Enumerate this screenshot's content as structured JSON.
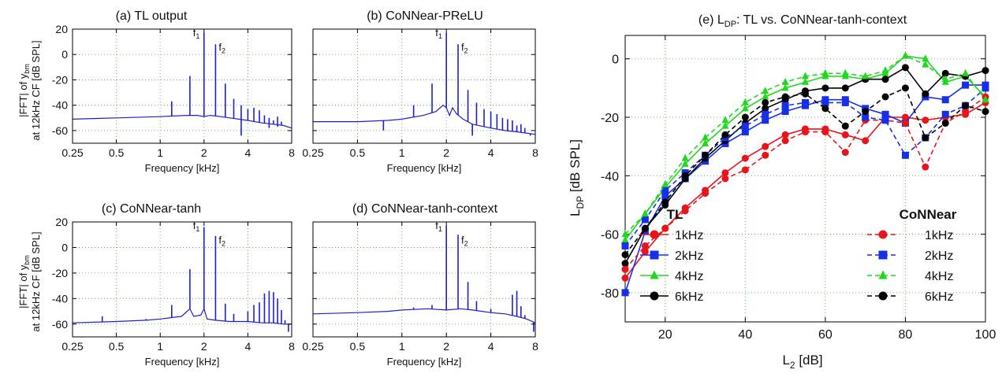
{
  "panels": {
    "a": {
      "title": "(a) TL output"
    },
    "b": {
      "title": "(b) CoNNear-PReLU"
    },
    "c": {
      "title": "(c) CoNNear-tanh"
    },
    "d": {
      "title": "(d) CoNNear-tanh-context"
    },
    "e": {
      "title_prefix": "(e) L",
      "title_sub": "DP",
      "title_suffix": ": TL vs. CoNNear-tanh-context"
    }
  },
  "spectrum_axes": {
    "xlabel": "Frequency [kHz]",
    "ylabel_line1_prefix": "|FFT| of y",
    "ylabel_line1_sub": "bm",
    "ylabel_line2": "at 12kHz CF [dB SPL]",
    "xticks": [
      "0.25",
      "0.5",
      "1",
      "2",
      "4",
      "8"
    ],
    "yticks": [
      "20",
      "0",
      "-20",
      "-40",
      "-60"
    ],
    "peak_f1": "f",
    "peak_f1_sub": "1",
    "peak_f2": "f",
    "peak_f2_sub": "2"
  },
  "ldp_axes": {
    "xlabel_prefix": "L",
    "xlabel_sub": "2",
    "xlabel_suffix": " [dB]",
    "ylabel_prefix": "L",
    "ylabel_sub": "DP",
    "ylabel_suffix": " [dB SPL]",
    "xticks": [
      "20",
      "40",
      "60",
      "80",
      "100"
    ],
    "yticks": [
      "0",
      "-20",
      "-40",
      "-60",
      "-80"
    ]
  },
  "legend": {
    "col1_header": "TL",
    "col2_header": "CoNNear",
    "entries": [
      "1kHz",
      "2kHz",
      "4kHz",
      "6kHz"
    ]
  },
  "colors": {
    "spectrum": "#1f1fd0",
    "red": "#e8141b",
    "blue": "#1530e6",
    "green": "#1fd81f",
    "black": "#000000"
  },
  "chart_data": [
    {
      "type": "line",
      "title": "(a) TL output",
      "xscale": "log2",
      "xlim": [
        0.25,
        8
      ],
      "ylim": [
        -70,
        20
      ],
      "xlabel": "Frequency [kHz]",
      "ylabel": "|FFT| of ybm at 12kHz CF [dB SPL]",
      "floor": [
        [
          0.25,
          -51
        ],
        [
          0.5,
          -50
        ],
        [
          1,
          -49
        ],
        [
          1.5,
          -48
        ],
        [
          1.8,
          -48
        ],
        [
          2,
          -49
        ],
        [
          2.2,
          -48
        ],
        [
          2.6,
          -49
        ],
        [
          3,
          -50
        ],
        [
          4,
          -52
        ],
        [
          5,
          -54
        ],
        [
          6,
          -55
        ],
        [
          7,
          -56
        ],
        [
          8,
          -58
        ]
      ],
      "peaks": [
        [
          1.2,
          -37
        ],
        [
          1.6,
          -17
        ],
        [
          2.0,
          17
        ],
        [
          2.4,
          8
        ],
        [
          2.8,
          -23
        ],
        [
          3.2,
          -35
        ],
        [
          3.6,
          -40
        ],
        [
          4.0,
          -43
        ],
        [
          4.4,
          -42
        ],
        [
          4.8,
          -44
        ],
        [
          5.2,
          -48
        ],
        [
          5.6,
          -50
        ],
        [
          6.0,
          -52
        ],
        [
          6.4,
          -49
        ],
        [
          6.8,
          -53
        ]
      ],
      "dips": [
        [
          3.6,
          -64
        ],
        [
          5.6,
          -58
        ],
        [
          6.4,
          -57
        ]
      ],
      "annotations": [
        {
          "text": "f1",
          "x": 2.0
        },
        {
          "text": "f2",
          "x": 2.4
        }
      ]
    },
    {
      "type": "line",
      "title": "(b) CoNNear-PReLU",
      "xscale": "log2",
      "xlim": [
        0.25,
        8
      ],
      "ylim": [
        -70,
        20
      ],
      "xlabel": "Frequency [kHz]",
      "floor": [
        [
          0.25,
          -53
        ],
        [
          0.5,
          -53
        ],
        [
          0.8,
          -52
        ],
        [
          1,
          -51
        ],
        [
          1.4,
          -48
        ],
        [
          1.7,
          -45
        ],
        [
          1.9,
          -40
        ],
        [
          2.0,
          -42
        ],
        [
          2.1,
          -48
        ],
        [
          2.2,
          -42
        ],
        [
          2.35,
          -47
        ],
        [
          2.6,
          -51
        ],
        [
          3,
          -55
        ],
        [
          4,
          -58
        ],
        [
          5,
          -60
        ],
        [
          6,
          -61
        ],
        [
          8,
          -63
        ]
      ],
      "peaks": [
        [
          1.2,
          -40
        ],
        [
          1.6,
          -23
        ],
        [
          2.0,
          17
        ],
        [
          2.4,
          8
        ],
        [
          2.8,
          -28
        ],
        [
          3.2,
          -38
        ],
        [
          3.6,
          -43
        ],
        [
          4.0,
          -45
        ],
        [
          4.4,
          -47
        ],
        [
          4.8,
          -50
        ],
        [
          5.2,
          -51
        ],
        [
          5.6,
          -52
        ],
        [
          6.0,
          -56
        ],
        [
          6.4,
          -55
        ],
        [
          6.8,
          -58
        ]
      ],
      "dips": [
        [
          0.75,
          -60
        ],
        [
          3.0,
          -64
        ],
        [
          7.4,
          -64
        ]
      ],
      "annotations": [
        {
          "text": "f1",
          "x": 2.0
        },
        {
          "text": "f2",
          "x": 2.4
        }
      ]
    },
    {
      "type": "line",
      "title": "(c) CoNNear-tanh",
      "xscale": "log2",
      "xlim": [
        0.25,
        8
      ],
      "ylim": [
        -70,
        20
      ],
      "xlabel": "Frequency [kHz]",
      "ylabel": "|FFT| of ybm at 12kHz CF [dB SPL]",
      "floor": [
        [
          0.25,
          -59
        ],
        [
          0.5,
          -58
        ],
        [
          0.8,
          -57
        ],
        [
          1,
          -56
        ],
        [
          1.4,
          -54
        ],
        [
          1.6,
          -48
        ],
        [
          1.7,
          -54
        ],
        [
          1.9,
          -53
        ],
        [
          2.0,
          -48
        ],
        [
          2.1,
          -56
        ],
        [
          2.4,
          -57
        ],
        [
          3,
          -58
        ],
        [
          4,
          -58
        ],
        [
          5,
          -59
        ],
        [
          6,
          -59
        ],
        [
          7,
          -60
        ],
        [
          8,
          -60
        ]
      ],
      "peaks": [
        [
          0.4,
          -54
        ],
        [
          0.8,
          -56
        ],
        [
          1.2,
          -45
        ],
        [
          1.6,
          -17
        ],
        [
          2.0,
          16
        ],
        [
          2.4,
          9
        ],
        [
          2.8,
          -44
        ],
        [
          3.2,
          -52
        ],
        [
          4.0,
          -50
        ],
        [
          4.4,
          -45
        ],
        [
          4.8,
          -43
        ],
        [
          5.2,
          -36
        ],
        [
          5.6,
          -34
        ],
        [
          6.0,
          -35
        ],
        [
          6.4,
          -40
        ],
        [
          6.8,
          -49
        ],
        [
          7.2,
          -57
        ]
      ],
      "dips": [
        [
          7.6,
          -66
        ]
      ],
      "annotations": [
        {
          "text": "f1",
          "x": 2.0
        },
        {
          "text": "f2",
          "x": 2.4
        }
      ]
    },
    {
      "type": "line",
      "title": "(d) CoNNear-tanh-context",
      "xscale": "log2",
      "xlim": [
        0.25,
        8
      ],
      "ylim": [
        -70,
        20
      ],
      "xlabel": "Frequency [kHz]",
      "floor": [
        [
          0.25,
          -52
        ],
        [
          0.5,
          -51
        ],
        [
          0.8,
          -50
        ],
        [
          1,
          -49
        ],
        [
          1.5,
          -48
        ],
        [
          2,
          -49
        ],
        [
          2.5,
          -48
        ],
        [
          3,
          -49
        ],
        [
          3.5,
          -50
        ],
        [
          4,
          -51
        ],
        [
          5,
          -52
        ],
        [
          6,
          -54
        ],
        [
          7,
          -56
        ],
        [
          8,
          -59
        ]
      ],
      "peaks": [
        [
          1.2,
          -47
        ],
        [
          1.6,
          -45
        ],
        [
          2.0,
          17
        ],
        [
          2.4,
          10
        ],
        [
          2.8,
          -27
        ],
        [
          3.2,
          -42
        ],
        [
          4.0,
          -48
        ],
        [
          5.6,
          -37
        ],
        [
          6.0,
          -34
        ],
        [
          6.4,
          -46
        ],
        [
          6.8,
          -53
        ]
      ],
      "dips": [
        [
          7.8,
          -66
        ]
      ],
      "annotations": [
        {
          "text": "f1",
          "x": 2.0
        },
        {
          "text": "f2",
          "x": 2.4
        }
      ]
    },
    {
      "type": "line",
      "title": "(e) LDP: TL vs. CoNNear-tanh-context",
      "xlim": [
        10,
        100
      ],
      "ylim": [
        -90,
        8
      ],
      "xlabel": "L2 [dB]",
      "ylabel": "LDP [dB SPL]",
      "x": [
        10,
        15,
        20,
        25,
        30,
        35,
        40,
        45,
        50,
        55,
        60,
        65,
        70,
        75,
        80,
        85,
        90,
        95,
        100
      ],
      "series": [
        {
          "name": "1kHz",
          "group": "TL",
          "color": "red",
          "marker": "circle",
          "dashed": false,
          "values": [
            -75,
            -66,
            -58,
            -51,
            -45,
            -39,
            -34,
            -30,
            -26,
            -24,
            -24,
            -26,
            -28,
            -20,
            -20,
            -21,
            -20,
            -19,
            -15
          ]
        },
        {
          "name": "2kHz",
          "group": "TL",
          "color": "blue",
          "marker": "square",
          "dashed": false,
          "values": [
            -80,
            -59,
            -47,
            -41,
            -35,
            -29,
            -25,
            -21,
            -18,
            -16,
            -14,
            -14,
            -17,
            -19,
            -22,
            -13,
            -14,
            -9,
            -9
          ]
        },
        {
          "name": "4kHz",
          "group": "TL",
          "color": "green",
          "marker": "triangle",
          "dashed": false,
          "values": [
            -62,
            -53,
            -44,
            -36,
            -29,
            -23,
            -17,
            -13,
            -10,
            -8,
            -6,
            -6,
            -7,
            -5,
            1,
            0,
            -8,
            -6,
            -13
          ]
        },
        {
          "name": "6kHz",
          "group": "TL",
          "color": "black",
          "marker": "circle",
          "dashed": false,
          "values": [
            -70,
            -58,
            -50,
            -41,
            -34,
            -28,
            -22,
            -17,
            -14,
            -11,
            -10,
            -10,
            -7,
            -7,
            -3,
            -12,
            -5,
            -6,
            -4
          ]
        },
        {
          "name": "1kHz",
          "group": "CoNNear",
          "color": "red",
          "marker": "circle",
          "dashed": true,
          "values": [
            -72,
            -64,
            -58,
            -52,
            -46,
            -41,
            -38,
            -33,
            -28,
            -25,
            -25,
            -32,
            -21,
            -21,
            -22,
            -37,
            -22,
            -18,
            -13
          ]
        },
        {
          "name": "2kHz",
          "group": "CoNNear",
          "color": "blue",
          "marker": "square",
          "dashed": true,
          "values": [
            -64,
            -55,
            -45,
            -39,
            -33,
            -27,
            -23,
            -19,
            -16,
            -15,
            -15,
            -15,
            -20,
            -21,
            -33,
            -27,
            -19,
            -16,
            -10
          ]
        },
        {
          "name": "4kHz",
          "group": "CoNNear",
          "color": "green",
          "marker": "triangle",
          "dashed": true,
          "values": [
            -60,
            -53,
            -43,
            -34,
            -27,
            -21,
            -15,
            -11,
            -8,
            -6,
            -5,
            -5,
            -6,
            -4,
            1,
            -2,
            -7,
            -5,
            -14
          ]
        },
        {
          "name": "6kHz",
          "group": "CoNNear",
          "color": "black",
          "marker": "circle",
          "dashed": true,
          "values": [
            -67,
            -58,
            -49,
            -40,
            -33,
            -26,
            -20,
            -15,
            -13,
            -12,
            -17,
            -23,
            -18,
            -13,
            -10,
            -27,
            -22,
            -16,
            -18
          ]
        }
      ],
      "legend_position": "bottom-right",
      "grid": true
    }
  ]
}
